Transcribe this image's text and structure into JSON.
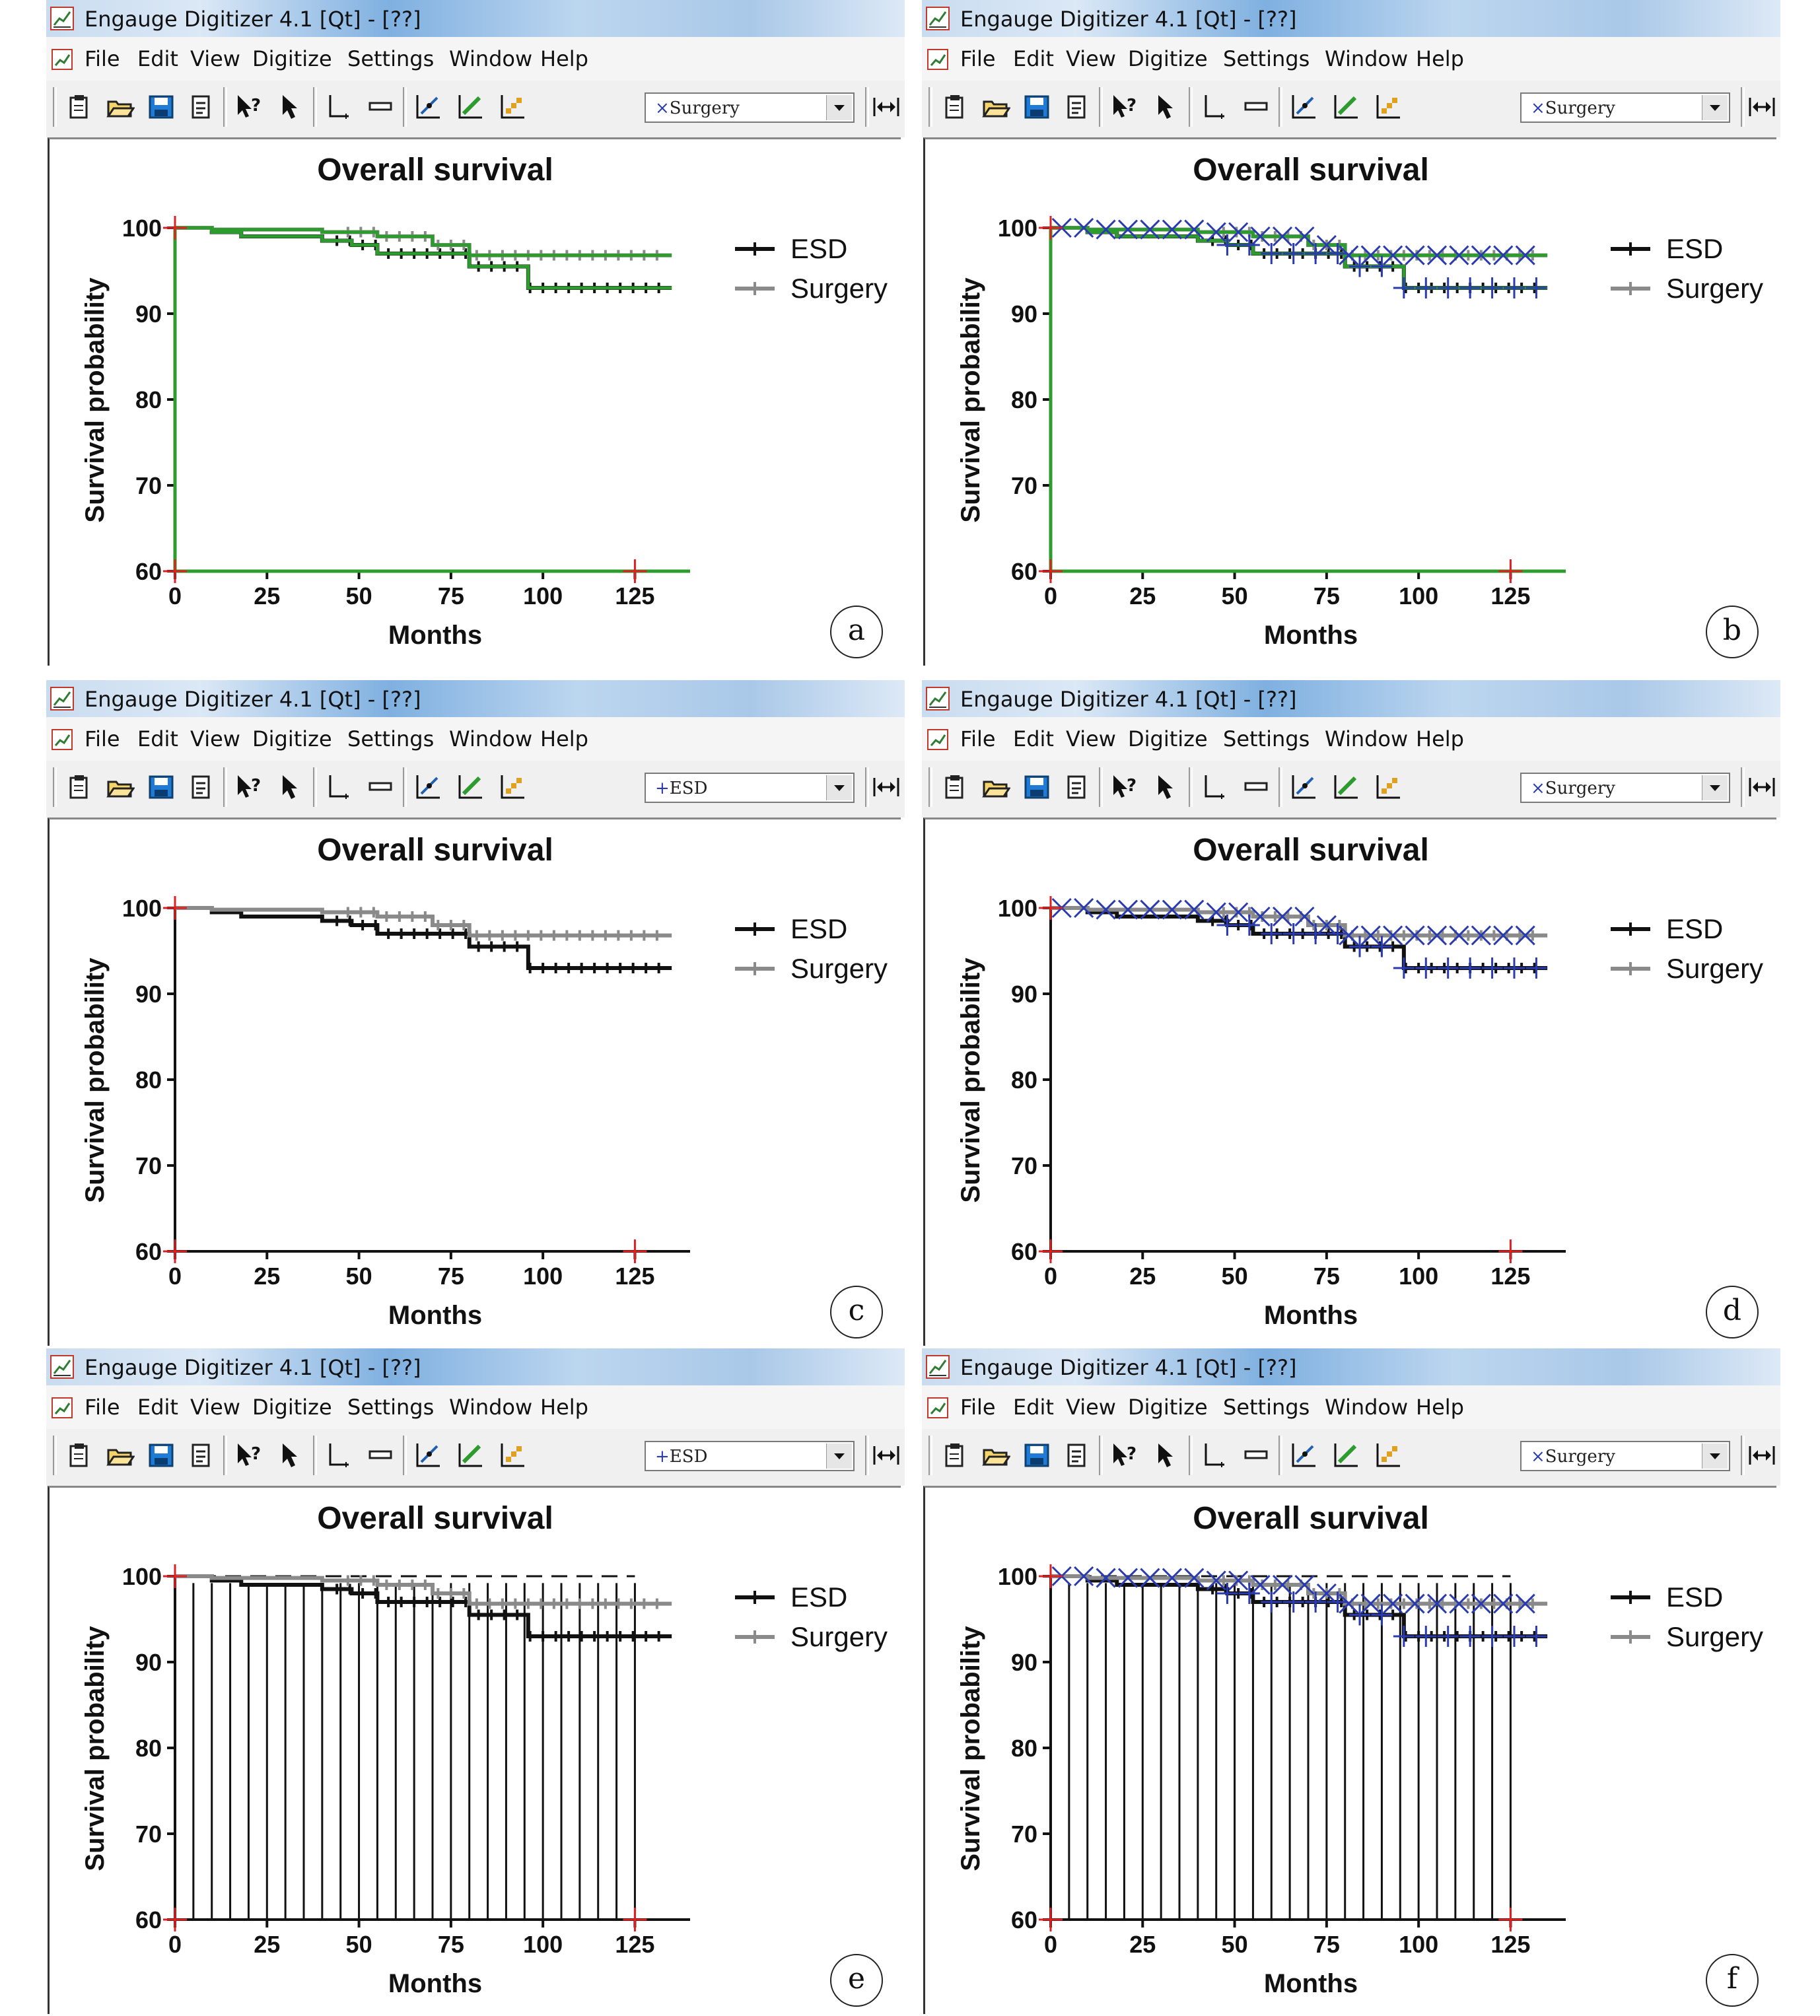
{
  "app": {
    "window_title": "Engauge Digitizer 4.1 [Qt] - [??]",
    "menus": [
      "File",
      "Edit",
      "View",
      "Digitize",
      "Settings",
      "Window",
      "Help"
    ]
  },
  "colors": {
    "esd": "#111111",
    "surgery": "#8a8a8a",
    "axis_points": "#e02020",
    "curve_points": "#2a3bb0",
    "segments": "#2e9b2e"
  },
  "panels": [
    {
      "label": "a",
      "curve_selector": "Surgery",
      "curve_marker": "cross-x",
      "view": "segments"
    },
    {
      "label": "b",
      "curve_selector": "Surgery",
      "curve_marker": "cross-x",
      "view": "segments-points"
    },
    {
      "label": "c",
      "curve_selector": "ESD",
      "curve_marker": "plus",
      "view": "plain"
    },
    {
      "label": "d",
      "curve_selector": "Surgery",
      "curve_marker": "cross-x",
      "view": "points"
    },
    {
      "label": "e",
      "curve_selector": "ESD",
      "curve_marker": "plus",
      "view": "grid"
    },
    {
      "label": "f",
      "curve_selector": "Surgery",
      "curve_marker": "cross-x",
      "view": "grid-points"
    }
  ],
  "chart_data": {
    "type": "line",
    "title": "Overall survival",
    "xlabel": "Months",
    "ylabel": "Survival probability",
    "xlim": [
      0,
      140
    ],
    "ylim": [
      60,
      100
    ],
    "xticks": [
      0,
      25,
      50,
      75,
      100,
      125
    ],
    "yticks": [
      60,
      70,
      80,
      90,
      100
    ],
    "legend_position": "top-right",
    "series": [
      {
        "name": "ESD",
        "x": [
          0,
          10,
          18,
          40,
          48,
          55,
          80,
          96,
          135
        ],
        "y": [
          100,
          99.5,
          99,
          98.5,
          98,
          97,
          95.5,
          93,
          93
        ]
      },
      {
        "name": "Surgery",
        "x": [
          0,
          10,
          40,
          55,
          70,
          80,
          135
        ],
        "y": [
          100,
          99.8,
          99.5,
          99,
          98,
          96.8,
          96.8
        ]
      }
    ]
  }
}
